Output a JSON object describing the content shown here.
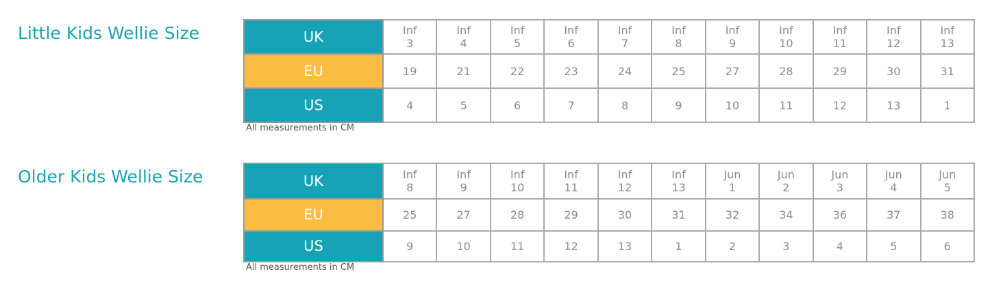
{
  "sections": [
    {
      "title": "Little Kids Wellie Size",
      "rows": [
        {
          "label": "UK",
          "cells": [
            {
              "top": "Inf",
              "bottom": "3"
            },
            {
              "top": "Inf",
              "bottom": "4"
            },
            {
              "top": "Inf",
              "bottom": "5"
            },
            {
              "top": "Inf",
              "bottom": "6"
            },
            {
              "top": "Inf",
              "bottom": "7"
            },
            {
              "top": "Inf",
              "bottom": "8"
            },
            {
              "top": "Inf",
              "bottom": "9"
            },
            {
              "top": "Inf",
              "bottom": "10"
            },
            {
              "top": "Inf",
              "bottom": "11"
            },
            {
              "top": "Inf",
              "bottom": "12"
            },
            {
              "top": "Inf",
              "bottom": "13"
            }
          ]
        },
        {
          "label": "EU",
          "cells": [
            19,
            21,
            22,
            23,
            24,
            25,
            27,
            28,
            29,
            30,
            31
          ]
        },
        {
          "label": "US",
          "cells": [
            4,
            5,
            6,
            7,
            8,
            9,
            10,
            11,
            12,
            13,
            1
          ]
        }
      ],
      "note": "All measurements in CM"
    },
    {
      "title": "Older Kids Wellie Size",
      "rows": [
        {
          "label": "UK",
          "cells": [
            {
              "top": "Inf",
              "bottom": "8"
            },
            {
              "top": "Inf",
              "bottom": "9"
            },
            {
              "top": "Inf",
              "bottom": "10"
            },
            {
              "top": "Inf",
              "bottom": "11"
            },
            {
              "top": "Inf",
              "bottom": "12"
            },
            {
              "top": "Inf",
              "bottom": "13"
            },
            {
              "top": "Jun",
              "bottom": "1"
            },
            {
              "top": "Jun",
              "bottom": "2"
            },
            {
              "top": "Jun",
              "bottom": "3"
            },
            {
              "top": "Jun",
              "bottom": "4"
            },
            {
              "top": "Jun",
              "bottom": "5"
            }
          ]
        },
        {
          "label": "EU",
          "cells": [
            25,
            27,
            28,
            29,
            30,
            31,
            32,
            34,
            36,
            37,
            38
          ]
        },
        {
          "label": "US",
          "cells": [
            9,
            10,
            11,
            12,
            13,
            1,
            2,
            3,
            4,
            5,
            6
          ]
        }
      ],
      "note": "All measurements in CM"
    }
  ]
}
